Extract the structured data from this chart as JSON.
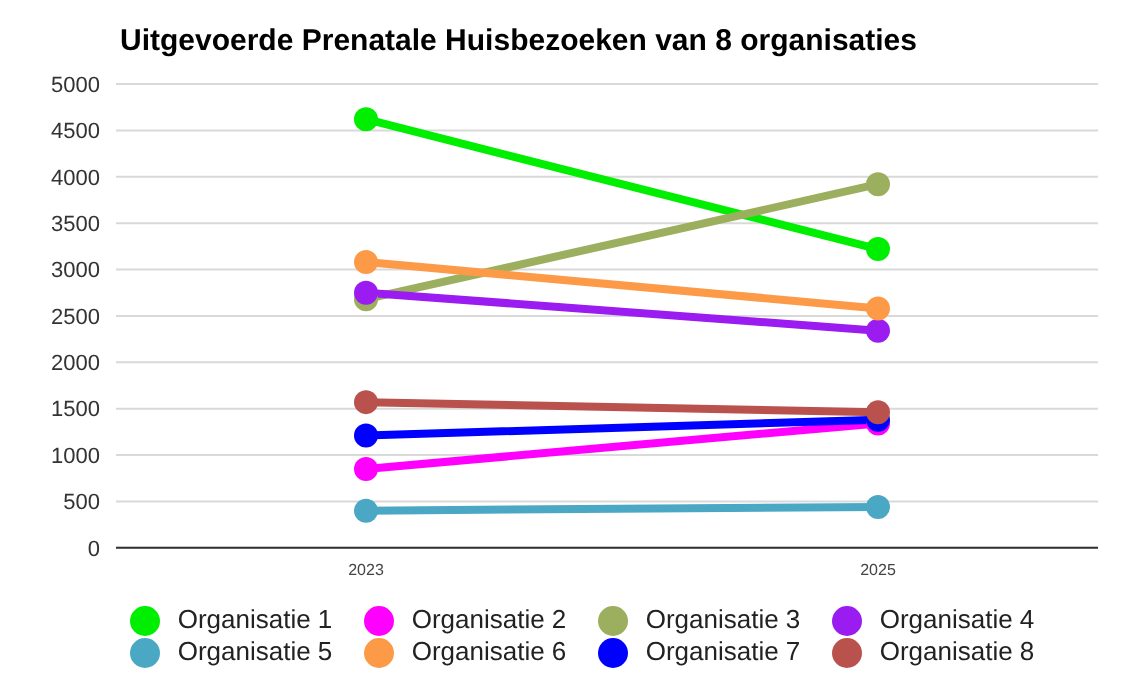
{
  "chart_data": {
    "type": "line",
    "title": "Uitgevoerde Prenatale Huisbezoeken van 8 organisaties",
    "categories": [
      "2023",
      "2025"
    ],
    "series": [
      {
        "name": "Organisatie 1",
        "color": "#00ee00",
        "values": [
          4620,
          3220
        ]
      },
      {
        "name": "Organisatie 2",
        "color": "#ff00ff",
        "values": [
          850,
          1340
        ]
      },
      {
        "name": "Organisatie 3",
        "color": "#9caf5f",
        "values": [
          2680,
          3920
        ]
      },
      {
        "name": "Organisatie 4",
        "color": "#9a1cf0",
        "values": [
          2750,
          2340
        ]
      },
      {
        "name": "Organisatie 5",
        "color": "#4aa8c4",
        "values": [
          400,
          440
        ]
      },
      {
        "name": "Organisatie 6",
        "color": "#fd9a48",
        "values": [
          3080,
          2580
        ]
      },
      {
        "name": "Organisatie 7",
        "color": "#0000ff",
        "values": [
          1210,
          1380
        ]
      },
      {
        "name": "Organisatie 8",
        "color": "#b9524c",
        "values": [
          1570,
          1460
        ]
      }
    ],
    "ylim": [
      0,
      5000
    ],
    "yticks": [
      0,
      500,
      1000,
      1500,
      2000,
      2500,
      3000,
      3500,
      4000,
      4500,
      5000
    ],
    "grid": "y",
    "legend": "bottom",
    "marker": "circle",
    "line_style": "solid"
  }
}
